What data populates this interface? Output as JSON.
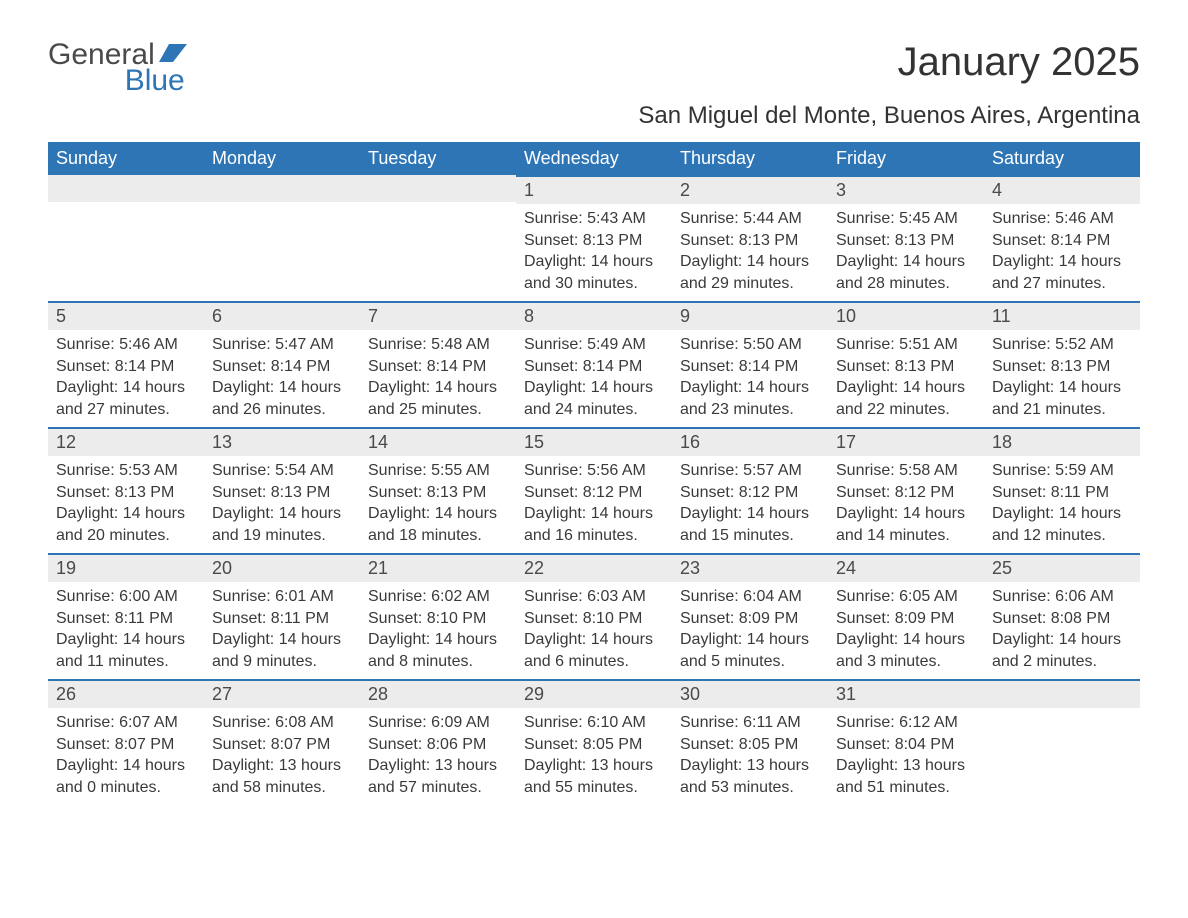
{
  "brand": {
    "word1": "General",
    "word2": "Blue",
    "text_color": "#4a4a4a",
    "accent_color": "#2e75b6"
  },
  "title": "January 2025",
  "location": "San Miguel del Monte, Buenos Aires, Argentina",
  "colors": {
    "header_bg": "#2e75b6",
    "header_text": "#ffffff",
    "row_stripe": "#ececec",
    "row_border": "#2e75b6",
    "body_text": "#3a3a3a",
    "page_bg": "#ffffff"
  },
  "weekdays": [
    "Sunday",
    "Monday",
    "Tuesday",
    "Wednesday",
    "Thursday",
    "Friday",
    "Saturday"
  ],
  "weeks": [
    [
      {
        "day": "",
        "sunrise": "",
        "sunset": "",
        "daylight": ""
      },
      {
        "day": "",
        "sunrise": "",
        "sunset": "",
        "daylight": ""
      },
      {
        "day": "",
        "sunrise": "",
        "sunset": "",
        "daylight": ""
      },
      {
        "day": "1",
        "sunrise": "Sunrise: 5:43 AM",
        "sunset": "Sunset: 8:13 PM",
        "daylight": "Daylight: 14 hours and 30 minutes."
      },
      {
        "day": "2",
        "sunrise": "Sunrise: 5:44 AM",
        "sunset": "Sunset: 8:13 PM",
        "daylight": "Daylight: 14 hours and 29 minutes."
      },
      {
        "day": "3",
        "sunrise": "Sunrise: 5:45 AM",
        "sunset": "Sunset: 8:13 PM",
        "daylight": "Daylight: 14 hours and 28 minutes."
      },
      {
        "day": "4",
        "sunrise": "Sunrise: 5:46 AM",
        "sunset": "Sunset: 8:14 PM",
        "daylight": "Daylight: 14 hours and 27 minutes."
      }
    ],
    [
      {
        "day": "5",
        "sunrise": "Sunrise: 5:46 AM",
        "sunset": "Sunset: 8:14 PM",
        "daylight": "Daylight: 14 hours and 27 minutes."
      },
      {
        "day": "6",
        "sunrise": "Sunrise: 5:47 AM",
        "sunset": "Sunset: 8:14 PM",
        "daylight": "Daylight: 14 hours and 26 minutes."
      },
      {
        "day": "7",
        "sunrise": "Sunrise: 5:48 AM",
        "sunset": "Sunset: 8:14 PM",
        "daylight": "Daylight: 14 hours and 25 minutes."
      },
      {
        "day": "8",
        "sunrise": "Sunrise: 5:49 AM",
        "sunset": "Sunset: 8:14 PM",
        "daylight": "Daylight: 14 hours and 24 minutes."
      },
      {
        "day": "9",
        "sunrise": "Sunrise: 5:50 AM",
        "sunset": "Sunset: 8:14 PM",
        "daylight": "Daylight: 14 hours and 23 minutes."
      },
      {
        "day": "10",
        "sunrise": "Sunrise: 5:51 AM",
        "sunset": "Sunset: 8:13 PM",
        "daylight": "Daylight: 14 hours and 22 minutes."
      },
      {
        "day": "11",
        "sunrise": "Sunrise: 5:52 AM",
        "sunset": "Sunset: 8:13 PM",
        "daylight": "Daylight: 14 hours and 21 minutes."
      }
    ],
    [
      {
        "day": "12",
        "sunrise": "Sunrise: 5:53 AM",
        "sunset": "Sunset: 8:13 PM",
        "daylight": "Daylight: 14 hours and 20 minutes."
      },
      {
        "day": "13",
        "sunrise": "Sunrise: 5:54 AM",
        "sunset": "Sunset: 8:13 PM",
        "daylight": "Daylight: 14 hours and 19 minutes."
      },
      {
        "day": "14",
        "sunrise": "Sunrise: 5:55 AM",
        "sunset": "Sunset: 8:13 PM",
        "daylight": "Daylight: 14 hours and 18 minutes."
      },
      {
        "day": "15",
        "sunrise": "Sunrise: 5:56 AM",
        "sunset": "Sunset: 8:12 PM",
        "daylight": "Daylight: 14 hours and 16 minutes."
      },
      {
        "day": "16",
        "sunrise": "Sunrise: 5:57 AM",
        "sunset": "Sunset: 8:12 PM",
        "daylight": "Daylight: 14 hours and 15 minutes."
      },
      {
        "day": "17",
        "sunrise": "Sunrise: 5:58 AM",
        "sunset": "Sunset: 8:12 PM",
        "daylight": "Daylight: 14 hours and 14 minutes."
      },
      {
        "day": "18",
        "sunrise": "Sunrise: 5:59 AM",
        "sunset": "Sunset: 8:11 PM",
        "daylight": "Daylight: 14 hours and 12 minutes."
      }
    ],
    [
      {
        "day": "19",
        "sunrise": "Sunrise: 6:00 AM",
        "sunset": "Sunset: 8:11 PM",
        "daylight": "Daylight: 14 hours and 11 minutes."
      },
      {
        "day": "20",
        "sunrise": "Sunrise: 6:01 AM",
        "sunset": "Sunset: 8:11 PM",
        "daylight": "Daylight: 14 hours and 9 minutes."
      },
      {
        "day": "21",
        "sunrise": "Sunrise: 6:02 AM",
        "sunset": "Sunset: 8:10 PM",
        "daylight": "Daylight: 14 hours and 8 minutes."
      },
      {
        "day": "22",
        "sunrise": "Sunrise: 6:03 AM",
        "sunset": "Sunset: 8:10 PM",
        "daylight": "Daylight: 14 hours and 6 minutes."
      },
      {
        "day": "23",
        "sunrise": "Sunrise: 6:04 AM",
        "sunset": "Sunset: 8:09 PM",
        "daylight": "Daylight: 14 hours and 5 minutes."
      },
      {
        "day": "24",
        "sunrise": "Sunrise: 6:05 AM",
        "sunset": "Sunset: 8:09 PM",
        "daylight": "Daylight: 14 hours and 3 minutes."
      },
      {
        "day": "25",
        "sunrise": "Sunrise: 6:06 AM",
        "sunset": "Sunset: 8:08 PM",
        "daylight": "Daylight: 14 hours and 2 minutes."
      }
    ],
    [
      {
        "day": "26",
        "sunrise": "Sunrise: 6:07 AM",
        "sunset": "Sunset: 8:07 PM",
        "daylight": "Daylight: 14 hours and 0 minutes."
      },
      {
        "day": "27",
        "sunrise": "Sunrise: 6:08 AM",
        "sunset": "Sunset: 8:07 PM",
        "daylight": "Daylight: 13 hours and 58 minutes."
      },
      {
        "day": "28",
        "sunrise": "Sunrise: 6:09 AM",
        "sunset": "Sunset: 8:06 PM",
        "daylight": "Daylight: 13 hours and 57 minutes."
      },
      {
        "day": "29",
        "sunrise": "Sunrise: 6:10 AM",
        "sunset": "Sunset: 8:05 PM",
        "daylight": "Daylight: 13 hours and 55 minutes."
      },
      {
        "day": "30",
        "sunrise": "Sunrise: 6:11 AM",
        "sunset": "Sunset: 8:05 PM",
        "daylight": "Daylight: 13 hours and 53 minutes."
      },
      {
        "day": "31",
        "sunrise": "Sunrise: 6:12 AM",
        "sunset": "Sunset: 8:04 PM",
        "daylight": "Daylight: 13 hours and 51 minutes."
      },
      {
        "day": "",
        "sunrise": "",
        "sunset": "",
        "daylight": ""
      }
    ]
  ]
}
